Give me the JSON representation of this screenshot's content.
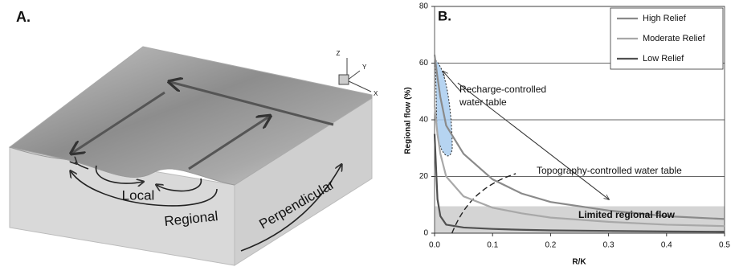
{
  "panel_a": {
    "label": "A.",
    "flow_labels": {
      "local": "Local",
      "regional": "Regional",
      "perpendicular": "Perpendicular"
    },
    "axes": {
      "z": "Z",
      "y": "Y",
      "x": "X"
    }
  },
  "chart_data": {
    "type": "line",
    "panel_label": "B.",
    "x_label": "R/K",
    "y_label": "Regional flow (%)",
    "xlim": [
      0,
      0.5
    ],
    "ylim": [
      0,
      80
    ],
    "xticks": [
      {
        "value": 0,
        "label": "0.0"
      },
      0.1,
      0.2,
      0.3,
      0.4,
      0.5
    ],
    "yticks": [
      0,
      20,
      40,
      60,
      80
    ],
    "grid": true,
    "legend": "upper right",
    "x": [
      0,
      0.005,
      0.01,
      0.02,
      0.05,
      0.1,
      0.15,
      0.2,
      0.3,
      0.4,
      0.5
    ],
    "series": [
      {
        "name": "High Relief",
        "color": "#8a8a8a",
        "values": [
          63,
          55,
          48,
          38,
          28,
          19,
          14,
          11,
          8,
          6,
          5
        ]
      },
      {
        "name": "Moderate Relief",
        "color": "#a8a8a8",
        "values": [
          45,
          35,
          28,
          20,
          13,
          9,
          7,
          5.5,
          4,
          3,
          2.5
        ]
      },
      {
        "name": "Low Relief",
        "color": "#505050",
        "values": [
          35,
          12,
          6,
          3,
          2,
          1.5,
          1.2,
          1,
          0.8,
          0.6,
          0.5
        ]
      }
    ],
    "limited_flow_band": [
      0,
      9.5
    ],
    "annotations": {
      "recharge": [
        "Recharge-controlled",
        "water table"
      ],
      "topography": "Topography-controlled water table",
      "limited": "Limited regional flow"
    }
  }
}
